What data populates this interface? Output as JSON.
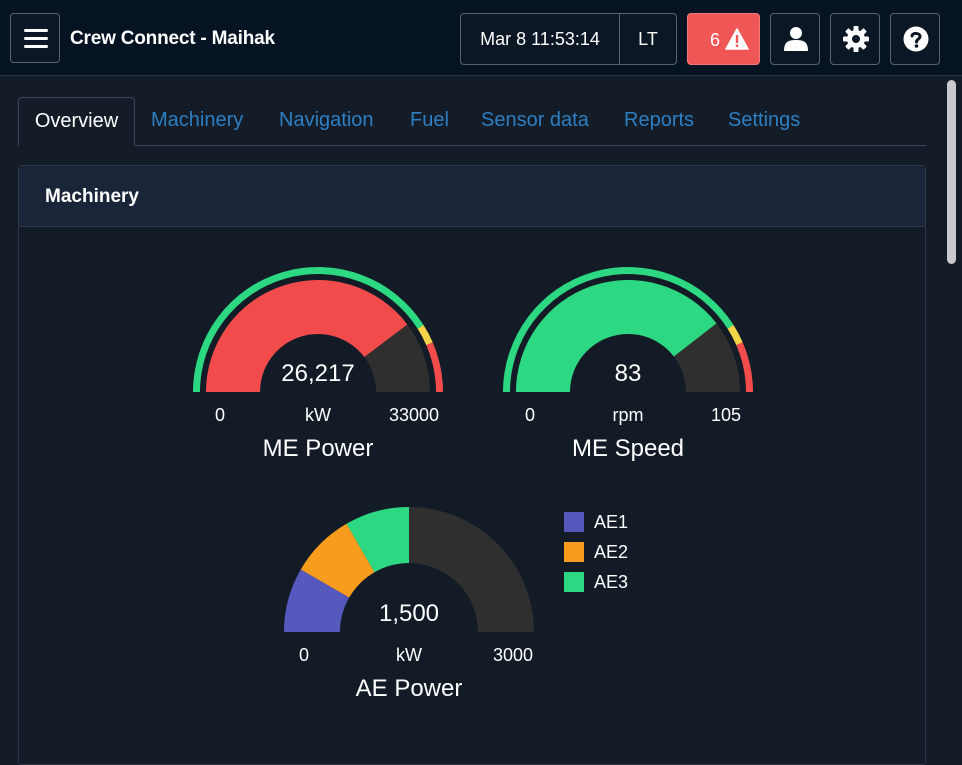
{
  "app": {
    "title": "Crew Connect - Maihak"
  },
  "header": {
    "datetime": "Mar 8 11:53:14",
    "timezone": "LT",
    "alarm_count": "6",
    "icons": {
      "menu": "menu-icon",
      "alarm": "warning-icon",
      "user": "user-icon",
      "settings": "gear-icon",
      "help": "help-icon"
    }
  },
  "tabs": [
    {
      "label": "Overview",
      "active": true
    },
    {
      "label": "Machinery"
    },
    {
      "label": "Navigation"
    },
    {
      "label": "Fuel"
    },
    {
      "label": "Sensor data"
    },
    {
      "label": "Reports"
    },
    {
      "label": "Settings"
    }
  ],
  "card": {
    "title": "Machinery"
  },
  "colors": {
    "green": "#2dd882",
    "red": "#f14b4b",
    "yellow": "#f5d44a",
    "track": "#2f2f2f",
    "ae1": "#5558bd",
    "ae2": "#f79c1c",
    "ae3": "#2dd882",
    "link": "#2d7fc4"
  },
  "gauges": {
    "me_power": {
      "title": "ME Power",
      "value": "26,217",
      "unit": "kW",
      "min": "0",
      "max": "33000",
      "fraction": 0.794,
      "fill_color": "red"
    },
    "me_speed": {
      "title": "ME Speed",
      "value": "83",
      "unit": "rpm",
      "min": "0",
      "max": "105",
      "fraction": 0.79,
      "fill_color": "green"
    },
    "ae_power": {
      "title": "AE Power",
      "value": "1,500",
      "unit": "kW",
      "min": "0",
      "max": "3000",
      "segments": [
        {
          "name": "AE1",
          "value": 500
        },
        {
          "name": "AE2",
          "value": 500
        },
        {
          "name": "AE3",
          "value": 500
        }
      ]
    }
  },
  "legend": [
    {
      "label": "AE1"
    },
    {
      "label": "AE2"
    },
    {
      "label": "AE3"
    }
  ]
}
